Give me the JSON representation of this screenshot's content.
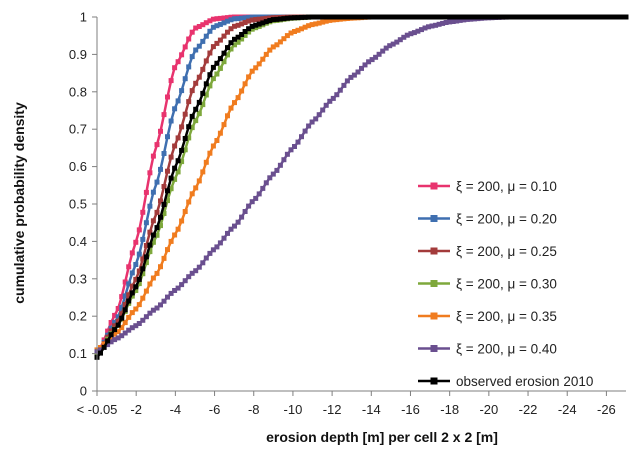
{
  "chart_data": {
    "type": "line",
    "title": "",
    "xlabel": "erosion depth [m] per cell 2 x 2 [m]",
    "ylabel": "cumulative probability density",
    "x_tick_labels": [
      "< -0.05",
      "-2",
      "-4",
      "-6",
      "-8",
      "-10",
      "-12",
      "-14",
      "-16",
      "-18",
      "-20",
      "-22",
      "-24",
      "-26"
    ],
    "x_ticks": [
      0,
      2,
      4,
      6,
      8,
      10,
      12,
      14,
      16,
      18,
      20,
      22,
      24,
      26
    ],
    "xlim": [
      0,
      27
    ],
    "y_tick_labels": [
      "0",
      "0.1",
      "0.2",
      "0.3",
      "0.4",
      "0.5",
      "0.6",
      "0.7",
      "0.8",
      "0.9",
      "1"
    ],
    "ylim": [
      0,
      1
    ],
    "grid": false,
    "legend_position": "right",
    "x": [
      0,
      1,
      2,
      3,
      4,
      5,
      6,
      7,
      8,
      9,
      10,
      11,
      12,
      13,
      14,
      15,
      16,
      17,
      18,
      19,
      20,
      21,
      22,
      23,
      24,
      25,
      26,
      27
    ],
    "series": [
      {
        "name": "ξ = 200, μ = 0.10",
        "color": "#e8336e",
        "values": [
          0.1,
          0.21,
          0.4,
          0.65,
          0.87,
          0.97,
          0.995,
          1.0,
          1.0,
          1.0,
          1.0,
          1.0,
          1.0,
          1.0,
          1.0,
          1.0,
          1.0,
          1.0,
          1.0,
          1.0,
          1.0,
          1.0,
          1.0,
          1.0,
          1.0,
          1.0,
          1.0,
          1.0
        ]
      },
      {
        "name": "ξ = 200, μ = 0.20",
        "color": "#3f6fb0",
        "values": [
          0.1,
          0.19,
          0.34,
          0.55,
          0.76,
          0.91,
          0.975,
          0.995,
          1.0,
          1.0,
          1.0,
          1.0,
          1.0,
          1.0,
          1.0,
          1.0,
          1.0,
          1.0,
          1.0,
          1.0,
          1.0,
          1.0,
          1.0,
          1.0,
          1.0,
          1.0,
          1.0,
          1.0
        ]
      },
      {
        "name": "ξ = 200, μ = 0.25",
        "color": "#a33b3b",
        "values": [
          0.1,
          0.18,
          0.3,
          0.47,
          0.66,
          0.82,
          0.925,
          0.975,
          0.993,
          0.998,
          1.0,
          1.0,
          1.0,
          1.0,
          1.0,
          1.0,
          1.0,
          1.0,
          1.0,
          1.0,
          1.0,
          1.0,
          1.0,
          1.0,
          1.0,
          1.0,
          1.0,
          1.0
        ]
      },
      {
        "name": "ξ = 200, μ = 0.30",
        "color": "#7ea83c",
        "values": [
          0.1,
          0.17,
          0.27,
          0.41,
          0.57,
          0.72,
          0.84,
          0.925,
          0.97,
          0.99,
          0.997,
          1.0,
          1.0,
          1.0,
          1.0,
          1.0,
          1.0,
          1.0,
          1.0,
          1.0,
          1.0,
          1.0,
          1.0,
          1.0,
          1.0,
          1.0,
          1.0,
          1.0
        ]
      },
      {
        "name": "ξ = 200, μ = 0.35",
        "color": "#f07c1f",
        "values": [
          0.11,
          0.155,
          0.22,
          0.31,
          0.42,
          0.54,
          0.66,
          0.77,
          0.86,
          0.92,
          0.96,
          0.98,
          0.992,
          0.997,
          1.0,
          1.0,
          1.0,
          1.0,
          1.0,
          1.0,
          1.0,
          1.0,
          1.0,
          1.0,
          1.0,
          1.0,
          1.0,
          1.0
        ]
      },
      {
        "name": "ξ = 200, μ = 0.40",
        "color": "#6a4f8f",
        "values": [
          0.105,
          0.14,
          0.175,
          0.22,
          0.27,
          0.32,
          0.38,
          0.44,
          0.51,
          0.58,
          0.65,
          0.72,
          0.78,
          0.84,
          0.885,
          0.925,
          0.955,
          0.975,
          0.987,
          0.994,
          0.998,
          1.0,
          1.0,
          1.0,
          1.0,
          1.0,
          1.0,
          1.0
        ]
      },
      {
        "name": "observed erosion 2010",
        "color": "#000000",
        "values": [
          0.09,
          0.17,
          0.28,
          0.43,
          0.6,
          0.75,
          0.87,
          0.94,
          0.977,
          0.993,
          0.998,
          1.0,
          1.0,
          1.0,
          1.0,
          1.0,
          1.0,
          1.0,
          1.0,
          1.0,
          1.0,
          1.0,
          1.0,
          1.0,
          1.0,
          1.0,
          1.0,
          1.0
        ]
      }
    ]
  }
}
